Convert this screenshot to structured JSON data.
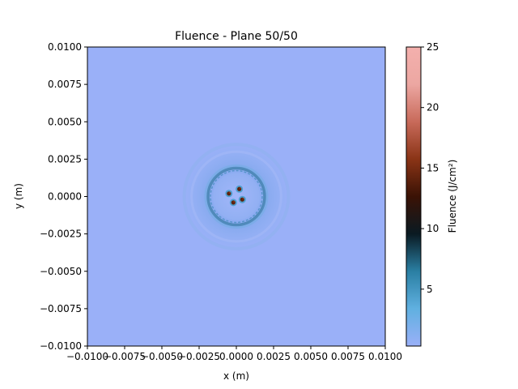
{
  "chart_data": {
    "type": "heatmap",
    "title": "Fluence - Plane 50/50",
    "xlabel": "x (m)",
    "ylabel": "y (m)",
    "xlim": [
      -0.01,
      0.01
    ],
    "ylim": [
      -0.01,
      0.01
    ],
    "x_ticks": [
      "−0.0100",
      "−0.0075",
      "−0.0050",
      "−0.0025",
      "0.0000",
      "0.0025",
      "0.0050",
      "0.0075",
      "0.0100"
    ],
    "y_ticks": [
      "0.0100",
      "0.0075",
      "0.0050",
      "0.0025",
      "0.0000",
      "−0.0025",
      "−0.0050",
      "−0.0075",
      "−0.0100"
    ],
    "colorbar": {
      "label": "Fluence (J/cm²)",
      "range": [
        0.3,
        25
      ],
      "ticks": [
        "5",
        "10",
        "15",
        "20",
        "25"
      ],
      "colors": [
        "#9ab0f8",
        "#60b0e0",
        "#2a7fa3",
        "#0a1a22",
        "#3a1205",
        "#8a3416",
        "#c86a5a",
        "#eca7a2",
        "#f4b0ad"
      ]
    },
    "background_level": 0.3,
    "features": [
      {
        "kind": "ring",
        "center": [
          0.0,
          0.0
        ],
        "radius": 0.0019,
        "level": 7
      },
      {
        "kind": "faint_ring",
        "center": [
          0.0,
          0.0
        ],
        "radius": 0.0035,
        "level": 2
      },
      {
        "kind": "hotspot",
        "center": [
          -0.0005,
          0.0002
        ],
        "level": 14
      },
      {
        "kind": "hotspot",
        "center": [
          0.0002,
          0.0005
        ],
        "level": 14
      },
      {
        "kind": "hotspot",
        "center": [
          0.0004,
          -0.0002
        ],
        "level": 14
      },
      {
        "kind": "hotspot",
        "center": [
          -0.0002,
          -0.0004
        ],
        "level": 14
      }
    ]
  }
}
